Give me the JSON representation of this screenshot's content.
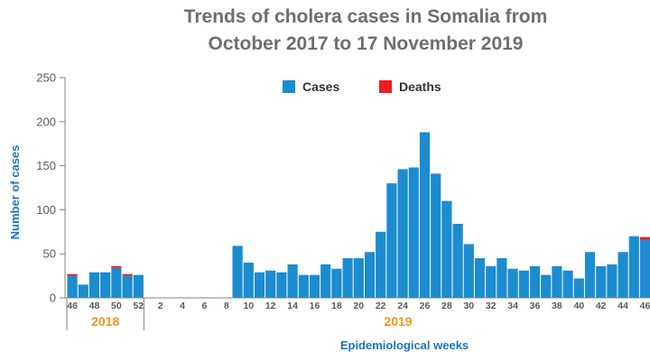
{
  "chart_data": {
    "type": "bar",
    "stacked": true,
    "title_line1": "Trends of cholera cases in Somalia from",
    "title_line2": "October 2017 to 17 November 2019",
    "ylabel": "Number of cases",
    "xlabel": "Epidemiological  weeks",
    "ylim": [
      0,
      250
    ],
    "yticks": [
      0,
      50,
      100,
      150,
      200,
      250
    ],
    "legend_position": "top-center",
    "colors": {
      "cases": "#1b8ccf",
      "deaths": "#ed1c24"
    },
    "series": [
      {
        "name": "Cases",
        "values": [
          25,
          15,
          29,
          29,
          34,
          25,
          26,
          0,
          0,
          0,
          0,
          0,
          0,
          0,
          0,
          59,
          40,
          29,
          31,
          29,
          38,
          26,
          26,
          38,
          33,
          45,
          45,
          52,
          75,
          130,
          146,
          148,
          188,
          141,
          110,
          84,
          61,
          45,
          36,
          45,
          33,
          31,
          36,
          26,
          36,
          31,
          22,
          52,
          36,
          38,
          52,
          70,
          66,
          63
        ]
      },
      {
        "name": "Deaths",
        "values": [
          2,
          0,
          0,
          0,
          2,
          2,
          0,
          0,
          0,
          0,
          0,
          0,
          0,
          0,
          0,
          0,
          0,
          0,
          0,
          0,
          0,
          0,
          0,
          0,
          0,
          0,
          0,
          0,
          0,
          0,
          0,
          0,
          0,
          0,
          0,
          0,
          0,
          0,
          0,
          0,
          0,
          0,
          0,
          0,
          0,
          0,
          0,
          0,
          0,
          0,
          0,
          0,
          3,
          3
        ]
      }
    ],
    "tick_labels": [
      {
        "index": 0,
        "label": "46"
      },
      {
        "index": 2,
        "label": "48"
      },
      {
        "index": 4,
        "label": "50"
      },
      {
        "index": 6,
        "label": "52"
      },
      {
        "index": 8,
        "label": "2"
      },
      {
        "index": 10,
        "label": "4"
      },
      {
        "index": 12,
        "label": "6"
      },
      {
        "index": 14,
        "label": "8"
      },
      {
        "index": 16,
        "label": "10"
      },
      {
        "index": 18,
        "label": "12"
      },
      {
        "index": 20,
        "label": "14"
      },
      {
        "index": 22,
        "label": "16"
      },
      {
        "index": 24,
        "label": "18"
      },
      {
        "index": 26,
        "label": "20"
      },
      {
        "index": 28,
        "label": "22"
      },
      {
        "index": 30,
        "label": "24"
      },
      {
        "index": 32,
        "label": "26"
      },
      {
        "index": 34,
        "label": "28"
      },
      {
        "index": 36,
        "label": "30"
      },
      {
        "index": 38,
        "label": "32"
      },
      {
        "index": 40,
        "label": "34"
      },
      {
        "index": 42,
        "label": "36"
      },
      {
        "index": 44,
        "label": "38"
      },
      {
        "index": 46,
        "label": "40"
      },
      {
        "index": 48,
        "label": "42"
      },
      {
        "index": 50,
        "label": "44"
      },
      {
        "index": 52,
        "label": "46"
      }
    ],
    "year_groups": [
      {
        "label": "2018",
        "start_index": 0,
        "end_index": 6
      },
      {
        "label": "2019",
        "start_index": 7,
        "end_index": 53
      }
    ]
  }
}
